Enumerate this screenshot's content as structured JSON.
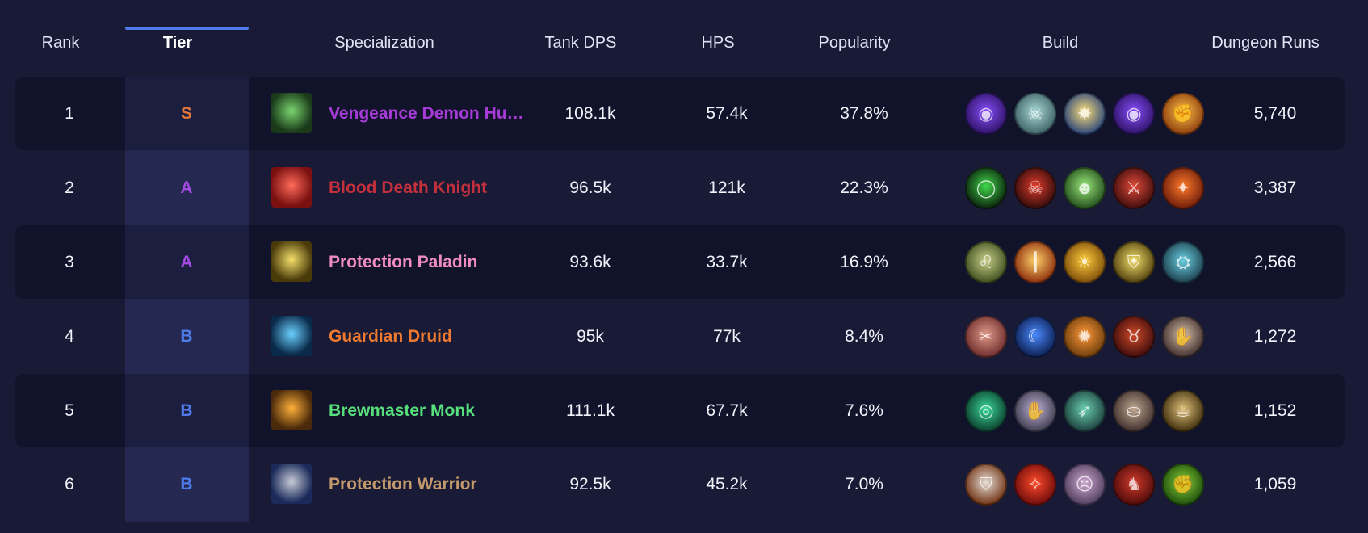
{
  "header": {
    "rank": "Rank",
    "tier": "Tier",
    "specialization": "Specialization",
    "tank_dps": "Tank DPS",
    "hps": "HPS",
    "popularity": "Popularity",
    "build": "Build",
    "dungeon_runs": "Dungeon Runs"
  },
  "tier_colors": {
    "S": "#e0773a",
    "A": "#a14be0",
    "B": "#4f7bea"
  },
  "rows": [
    {
      "rank": "1",
      "tier": "S",
      "spec": "Vengeance Demon Hunter",
      "spec_color": "#a63bd8",
      "spec_icon": "vengeance-demon-hunter-icon",
      "spec_icon_colors": [
        "#1a3a1a",
        "#7ad66e"
      ],
      "tank_dps": "108.1k",
      "hps": "57.4k",
      "popularity": "37.8%",
      "dungeon_runs": "5,740",
      "build": [
        {
          "icon": "void-orb-icon",
          "colors": [
            "#2a1060",
            "#8a4fff"
          ]
        },
        {
          "icon": "skull-icon",
          "colors": [
            "#3b5f64",
            "#a9d8d4"
          ]
        },
        {
          "icon": "light-burst-icon",
          "colors": [
            "#23407a",
            "#ffe07a"
          ]
        },
        {
          "icon": "void-orb-icon",
          "colors": [
            "#2a1060",
            "#8a4fff"
          ]
        },
        {
          "icon": "fire-fist-icon",
          "colors": [
            "#8a3a0a",
            "#ffc04a"
          ]
        }
      ]
    },
    {
      "rank": "2",
      "tier": "A",
      "spec": "Blood Death Knight",
      "spec_color": "#c4303c",
      "spec_icon": "blood-death-knight-icon",
      "spec_icon_colors": [
        "#7a1010",
        "#ff6a5a"
      ],
      "tank_dps": "96.5k",
      "hps": "121k",
      "popularity": "22.3%",
      "dungeon_runs": "3,387",
      "build": [
        {
          "icon": "portal-icon",
          "colors": [
            "#0a1a0a",
            "#3fd84a"
          ]
        },
        {
          "icon": "demon-skull-icon",
          "colors": [
            "#2a0a0a",
            "#e03a2a"
          ]
        },
        {
          "icon": "ghoul-icon",
          "colors": [
            "#1f4a1a",
            "#9ae87a"
          ]
        },
        {
          "icon": "blade-icon",
          "colors": [
            "#3a0a0a",
            "#e04a3a"
          ]
        },
        {
          "icon": "flame-claw-icon",
          "colors": [
            "#6a1a0a",
            "#ff7a2a"
          ]
        }
      ]
    },
    {
      "rank": "3",
      "tier": "A",
      "spec": "Protection Paladin",
      "spec_color": "#f08bc4",
      "spec_icon": "protection-paladin-icon",
      "spec_icon_colors": [
        "#4a3a0a",
        "#f5e06a"
      ],
      "tank_dps": "93.6k",
      "hps": "33.7k",
      "popularity": "16.9%",
      "dungeon_runs": "2,566",
      "build": [
        {
          "icon": "lion-icon",
          "colors": [
            "#3a4a1a",
            "#c9d08a"
          ]
        },
        {
          "icon": "holy-pillar-icon",
          "colors": [
            "#8a2a0a",
            "#ffd06a"
          ]
        },
        {
          "icon": "radiance-icon",
          "colors": [
            "#7a4a0a",
            "#ffcc3a"
          ]
        },
        {
          "icon": "golden-helm-icon",
          "colors": [
            "#4a3a0a",
            "#f5e06a"
          ]
        },
        {
          "icon": "rune-shield-icon",
          "colors": [
            "#1a3a4a",
            "#6ad0e0"
          ]
        }
      ]
    },
    {
      "rank": "4",
      "tier": "B",
      "spec": "Guardian Druid",
      "spec_color": "#f07a30",
      "spec_icon": "guardian-druid-icon",
      "spec_icon_colors": [
        "#0a2a4a",
        "#6ad0ff"
      ],
      "tank_dps": "95k",
      "hps": "77k",
      "popularity": "8.4%",
      "dungeon_runs": "1,272",
      "build": [
        {
          "icon": "rend-icon",
          "colors": [
            "#6a2a2a",
            "#e09a8a"
          ]
        },
        {
          "icon": "moonfire-icon",
          "colors": [
            "#0a1a4a",
            "#4a8aff"
          ]
        },
        {
          "icon": "thrash-icon",
          "colors": [
            "#6a3a0a",
            "#ff9a3a"
          ]
        },
        {
          "icon": "bear-icon",
          "colors": [
            "#3a0a0a",
            "#d04a2a"
          ]
        },
        {
          "icon": "claw-icon",
          "colors": [
            "#3a2a2a",
            "#d8c0a8"
          ]
        }
      ]
    },
    {
      "rank": "5",
      "tier": "B",
      "spec": "Brewmaster Monk",
      "spec_color": "#56df7a",
      "spec_icon": "brewmaster-monk-icon",
      "spec_icon_colors": [
        "#4a2a0a",
        "#ffb03a"
      ],
      "tank_dps": "111.1k",
      "hps": "67.7k",
      "popularity": "7.6%",
      "dungeon_runs": "1,152",
      "build": [
        {
          "icon": "vortex-icon",
          "colors": [
            "#0a3a2a",
            "#3ad89a"
          ]
        },
        {
          "icon": "palm-strike-icon",
          "colors": [
            "#3a3a4a",
            "#c0b0d8"
          ]
        },
        {
          "icon": "jade-kick-icon",
          "colors": [
            "#1a3a3a",
            "#6ad0b0"
          ]
        },
        {
          "icon": "keg-icon",
          "colors": [
            "#3a2a2a",
            "#c0a890"
          ]
        },
        {
          "icon": "brew-icon",
          "colors": [
            "#3a2a0a",
            "#e0c07a"
          ]
        }
      ]
    },
    {
      "rank": "6",
      "tier": "B",
      "spec": "Protection Warrior",
      "spec_color": "#c49a6c",
      "spec_icon": "protection-warrior-icon",
      "spec_icon_colors": [
        "#1a2a5a",
        "#c8ccd8"
      ],
      "tank_dps": "92.5k",
      "hps": "45.2k",
      "popularity": "7.0%",
      "dungeon_runs": "1,059",
      "build": [
        {
          "icon": "shield-icon",
          "colors": [
            "#6a2a0a",
            "#e8e0d8"
          ]
        },
        {
          "icon": "flame-slash-icon",
          "colors": [
            "#6a0a0a",
            "#ff4a2a"
          ]
        },
        {
          "icon": "war-cry-icon",
          "colors": [
            "#4a3a5a",
            "#d0a8d0"
          ]
        },
        {
          "icon": "avatar-icon",
          "colors": [
            "#4a0a0a",
            "#d03a2a"
          ]
        },
        {
          "icon": "green-fist-icon",
          "colors": [
            "#1a4a0a",
            "#8ad03a"
          ]
        }
      ]
    }
  ]
}
